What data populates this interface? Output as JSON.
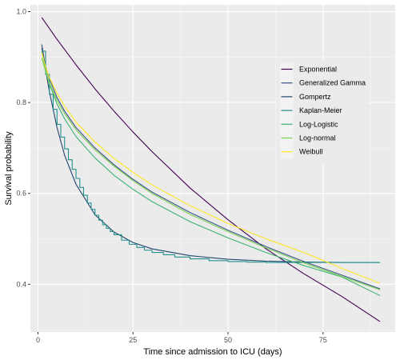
{
  "chart_data": {
    "type": "line",
    "title": "",
    "xlabel": "Time since admission to ICU (days)",
    "ylabel": "Survival probability",
    "xlim": [
      -2,
      94
    ],
    "ylim": [
      0.295,
      1.015
    ],
    "xticks": [
      0,
      25,
      50,
      75
    ],
    "xtick_labels": [
      "0",
      "25",
      "50",
      "75"
    ],
    "yticks": [
      0.4,
      0.6,
      0.8,
      1.0
    ],
    "ytick_labels": [
      "0.4",
      "0.6",
      "0.8",
      "1.0"
    ],
    "grid": true,
    "legend_position": "right, inside plot",
    "series": [
      {
        "name": "Exponential",
        "color": "#440154",
        "style": "line",
        "x": [
          1,
          5,
          10,
          15,
          20,
          25,
          30,
          40,
          50,
          60,
          70,
          80,
          90
        ],
        "y": [
          0.987,
          0.939,
          0.883,
          0.83,
          0.781,
          0.735,
          0.692,
          0.612,
          0.542,
          0.478,
          0.423,
          0.373,
          0.318
        ]
      },
      {
        "name": "Generalized Gamma",
        "color": "#3B528B",
        "style": "line",
        "x": [
          1,
          2,
          3,
          5,
          7,
          10,
          15,
          20,
          25,
          30,
          40,
          50,
          60,
          70,
          80,
          90
        ],
        "y": [
          0.92,
          0.88,
          0.852,
          0.811,
          0.781,
          0.745,
          0.7,
          0.663,
          0.631,
          0.603,
          0.558,
          0.519,
          0.483,
          0.45,
          0.42,
          0.39
        ]
      },
      {
        "name": "Gompertz",
        "color": "#21456D",
        "style": "line",
        "x": [
          1,
          2,
          3,
          5,
          7,
          10,
          15,
          20,
          25,
          30,
          40,
          50,
          60,
          70,
          80,
          90
        ],
        "y": [
          0.928,
          0.872,
          0.824,
          0.745,
          0.684,
          0.62,
          0.553,
          0.515,
          0.492,
          0.478,
          0.463,
          0.455,
          0.451,
          0.449,
          0.448,
          0.448
        ]
      },
      {
        "name": "Kaplan-Meier",
        "color": "#21908C",
        "style": "step",
        "x": [
          1,
          2,
          3,
          4,
          5,
          6,
          7,
          8,
          9,
          10,
          11,
          12,
          13,
          14,
          15,
          16,
          17,
          18,
          19,
          20,
          22,
          24,
          26,
          28,
          30,
          33,
          36,
          40,
          45,
          50,
          55,
          60,
          65,
          70,
          90
        ],
        "y": [
          0.913,
          0.862,
          0.818,
          0.785,
          0.752,
          0.724,
          0.698,
          0.674,
          0.653,
          0.633,
          0.613,
          0.596,
          0.579,
          0.565,
          0.552,
          0.541,
          0.531,
          0.523,
          0.516,
          0.509,
          0.497,
          0.488,
          0.481,
          0.475,
          0.47,
          0.465,
          0.46,
          0.456,
          0.452,
          0.45,
          0.449,
          0.448,
          0.448,
          0.448,
          0.448
        ]
      },
      {
        "name": "Log-Logistic",
        "color": "#3BB273",
        "style": "line",
        "x": [
          1,
          2,
          3,
          5,
          7,
          10,
          15,
          20,
          25,
          30,
          40,
          50,
          60,
          70,
          80,
          90
        ],
        "y": [
          0.912,
          0.871,
          0.841,
          0.797,
          0.764,
          0.725,
          0.678,
          0.64,
          0.609,
          0.582,
          0.538,
          0.502,
          0.47,
          0.441,
          0.416,
          0.375
        ]
      },
      {
        "name": "Log-normal",
        "color": "#7AD151",
        "style": "line",
        "x": [
          1,
          2,
          3,
          5,
          7,
          10,
          15,
          20,
          25,
          30,
          40,
          50,
          60,
          70,
          80,
          90
        ],
        "y": [
          0.898,
          0.868,
          0.843,
          0.805,
          0.776,
          0.74,
          0.696,
          0.66,
          0.628,
          0.6,
          0.554,
          0.516,
          0.48,
          0.447,
          0.417,
          0.388
        ]
      },
      {
        "name": "Weibull",
        "color": "#FDE725",
        "style": "line",
        "x": [
          1,
          2,
          3,
          5,
          7,
          10,
          15,
          20,
          25,
          30,
          40,
          50,
          60,
          70,
          80,
          90
        ],
        "y": [
          0.91,
          0.878,
          0.855,
          0.82,
          0.792,
          0.757,
          0.713,
          0.677,
          0.646,
          0.619,
          0.573,
          0.534,
          0.5,
          0.47,
          0.435,
          0.402
        ]
      }
    ]
  }
}
